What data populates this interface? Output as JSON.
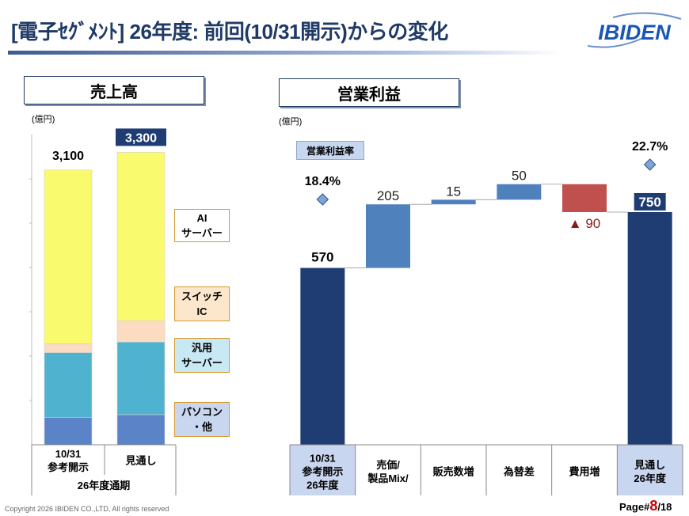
{
  "header": {
    "title": "[電子ｾｸﾞﾒﾝﾄ] 26年度: 前回(10/31開示)からの変化",
    "logo_text": "IBIDEN"
  },
  "left_panel": {
    "heading": "売上高",
    "unit": "(億円)",
    "legend": [
      {
        "line1": "AI",
        "line2": "サーバー"
      },
      {
        "line1": "スイッチ",
        "line2": "IC"
      },
      {
        "line1": "汎用",
        "line2": "サーバー"
      },
      {
        "line1": "パソコン",
        "line2": "・他"
      }
    ],
    "categories": [
      "10/31\n参考開示",
      "見通し"
    ],
    "group_label": "26年度通期"
  },
  "right_panel": {
    "heading": "営業利益",
    "unit": "(億円)",
    "rate_label": "営業利益率",
    "categories": [
      "10/31\n参考開示\n26年度",
      "売価/\n製品Mix/",
      "販売数増",
      "為替差",
      "費用増",
      "見通し\n26年度"
    ]
  },
  "footer": {
    "copyright": "Copyright 2026 IBIDEN CO.,LTD, All rights reserved",
    "page_prefix": "Page#",
    "page_current": "8",
    "page_suffix": "/18"
  },
  "colors": {
    "title": "#1f3a66",
    "ai_server": "#fafa6e",
    "switch_ic": "#fbdcc0",
    "general_server": "#4fb3cf",
    "pc_other": "#5b84c8",
    "total_bar": "#1f3d73",
    "increase_bar": "#4f81bd",
    "decrease_bar": "#c0504d",
    "rate_marker": "#7fa3d8"
  },
  "chart_data": [
    {
      "type": "bar",
      "stacked": true,
      "title": "売上高",
      "unit": "(億円)",
      "categories": [
        "10/31 参考開示",
        "見通し"
      ],
      "totals": [
        3100,
        3300
      ],
      "total_labels": [
        "3,100",
        "3,300"
      ],
      "ylim": [
        0,
        3500
      ],
      "series": [
        {
          "name": "パソコン・他",
          "values": [
            310,
            340
          ]
        },
        {
          "name": "汎用サーバー",
          "values": [
            730,
            820
          ]
        },
        {
          "name": "スイッチIC",
          "values": [
            100,
            240
          ]
        },
        {
          "name": "AIサーバー",
          "values": [
            1960,
            1900
          ]
        }
      ]
    },
    {
      "type": "bar",
      "subtype": "waterfall",
      "title": "営業利益",
      "unit": "(億円)",
      "categories": [
        "10/31 参考開示 26年度",
        "売価/製品Mix/",
        "販売数増",
        "為替差",
        "費用増",
        "見通し 26年度"
      ],
      "values": [
        570,
        205,
        15,
        50,
        -90,
        750
      ],
      "kinds": [
        "total",
        "increase",
        "increase",
        "increase",
        "decrease",
        "total"
      ],
      "value_labels": [
        "570",
        "205",
        "15",
        "50",
        "▲ 90",
        "750"
      ],
      "ylim": [
        0,
        1000
      ],
      "operating_margin": {
        "name": "営業利益率",
        "values": [
          18.4,
          22.7
        ],
        "labels": [
          "18.4%",
          "22.7%"
        ],
        "categories": [
          "10/31 参考開示 26年度",
          "見通し 26年度"
        ]
      }
    }
  ]
}
